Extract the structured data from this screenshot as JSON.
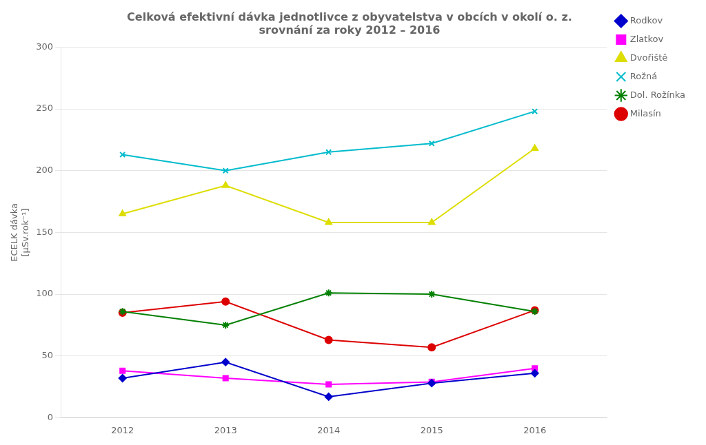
{
  "chart_data": {
    "type": "line",
    "title": [
      "Celková efektivní dávka jednotlivce z obyvatelstva v obcích v okolí o. z.",
      "srovnání za roky 2012 – 2016"
    ],
    "y_label": [
      "ECELK dávka",
      "[μSv.rok⁻¹]"
    ],
    "x": [
      2012,
      2013,
      2014,
      2015,
      2016
    ],
    "xlim": [
      2011.4,
      2016.7
    ],
    "xticks": [
      2012,
      2013,
      2014,
      2015,
      2016
    ],
    "ylim": [
      0,
      300
    ],
    "yticks": [
      0,
      50,
      100,
      150,
      200,
      250,
      300
    ],
    "grid": "y",
    "legend": "right",
    "series": [
      {
        "name": "Rodkov",
        "color": "#0000CC",
        "marker": "diamond",
        "values": [
          32,
          45,
          17,
          28,
          36
        ]
      },
      {
        "name": "Zlatkov",
        "color": "#FF00FF",
        "marker": "square",
        "values": [
          38,
          32,
          27,
          29,
          40
        ]
      },
      {
        "name": "Dvořiště",
        "color": "#DDDD00",
        "marker": "triangle",
        "values": [
          165,
          188,
          158,
          158,
          218
        ]
      },
      {
        "name": "Rožná",
        "color": "#00BBCC",
        "marker": "x",
        "values": [
          213,
          200,
          215,
          222,
          248
        ]
      },
      {
        "name": "Dol. Rožínka",
        "color": "#008000",
        "marker": "star",
        "values": [
          86,
          75,
          101,
          100,
          86
        ]
      },
      {
        "name": "Milasín",
        "color": "#DD0000",
        "marker": "circle",
        "values": [
          85,
          94,
          63,
          57,
          87
        ]
      }
    ]
  }
}
